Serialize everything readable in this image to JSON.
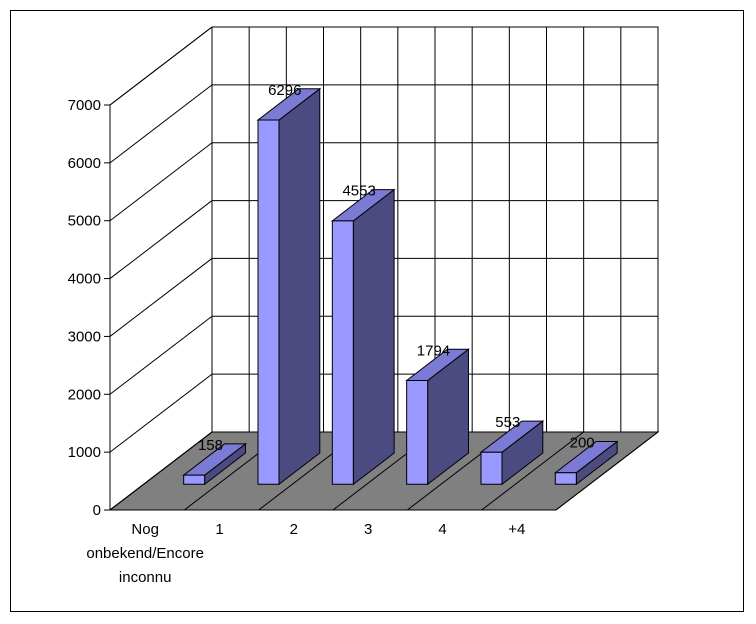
{
  "chart_data": {
    "type": "bar",
    "three_d": true,
    "categories": [
      [
        "Nog",
        "onbekend/Encore",
        "inconnu"
      ],
      [
        "1"
      ],
      [
        "2"
      ],
      [
        "3"
      ],
      [
        "4"
      ],
      [
        "+4"
      ]
    ],
    "values": [
      158,
      6296,
      4553,
      1794,
      553,
      200
    ],
    "data_labels": [
      "158",
      "6296",
      "4553",
      "1794",
      "553",
      "200"
    ],
    "y_ticks": [
      "0",
      "1000",
      "2000",
      "3000",
      "4000",
      "5000",
      "6000",
      "7000"
    ],
    "ylim": [
      0,
      7000
    ],
    "grid": true,
    "legend": "none",
    "colors": {
      "bar_front": "#9999ff",
      "bar_side": "#4b4b82",
      "bar_top": "#7b7bd6",
      "floor": "#808080",
      "grid": "#000000"
    }
  }
}
